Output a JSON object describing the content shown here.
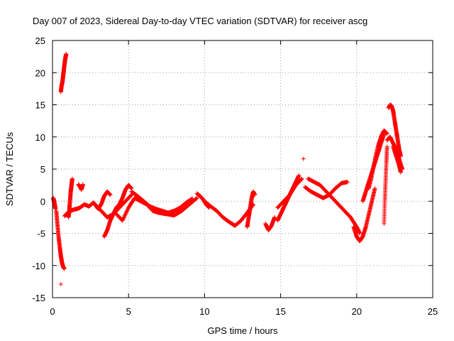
{
  "chart_data": {
    "type": "scatter",
    "title": "Day 007 of 2023, Sidereal Day-to-day VTEC variation (SDTVAR) for receiver ascg",
    "xlabel": "GPS time / hours",
    "ylabel": "SDTVAR / TECUs",
    "xlim": [
      0,
      25
    ],
    "ylim": [
      -15,
      25
    ],
    "xticks": [
      0,
      5,
      10,
      15,
      20,
      25
    ],
    "yticks": [
      -15,
      -10,
      -5,
      0,
      5,
      10,
      15,
      20,
      25
    ],
    "grid": true,
    "marker": "+",
    "series": [
      {
        "name": "SDTVAR",
        "color": "#ff0000",
        "segments": [
          {
            "x": [
              0.05,
              0.1,
              0.15,
              0.2
            ],
            "y": [
              0.5,
              0.0,
              -0.6,
              -1.2
            ]
          },
          {
            "x": [
              0.25,
              0.32,
              0.4,
              0.48,
              0.55,
              0.62,
              0.7,
              0.78
            ],
            "y": [
              -1.5,
              -3.5,
              -5.5,
              -7.2,
              -8.5,
              -9.5,
              -10.2,
              -10.5
            ]
          },
          {
            "x": [
              0.55
            ],
            "y": [
              -12.9
            ]
          },
          {
            "x": [
              0.55,
              0.6,
              0.65,
              0.7,
              0.75,
              0.8,
              0.85,
              0.9
            ],
            "y": [
              17.0,
              18.0,
              18.5,
              19.5,
              20.5,
              21.5,
              22.3,
              22.9
            ]
          },
          {
            "x": [
              0.8,
              1.0,
              1.2,
              1.4,
              1.6,
              1.8
            ],
            "y": [
              -2.3,
              -1.8,
              -1.5,
              -1.3,
              -1.2,
              -1.0
            ]
          },
          {
            "x": [
              1.05,
              1.1,
              1.15,
              1.2,
              1.25,
              1.3
            ],
            "y": [
              -2.5,
              -1.5,
              0.0,
              1.5,
              2.5,
              3.5
            ]
          },
          {
            "x": [
              1.7,
              1.8,
              1.9,
              2.0
            ],
            "y": [
              2.6,
              2.3,
              1.8,
              2.6
            ]
          },
          {
            "x": [
              1.8,
              2.1,
              2.4,
              2.7,
              3.0,
              3.2,
              3.4,
              3.6,
              3.8
            ],
            "y": [
              -1.0,
              -0.5,
              -0.8,
              -0.2,
              -1.2,
              -0.5,
              0.8,
              1.5,
              1.0
            ]
          },
          {
            "x": [
              3.4,
              3.6,
              3.8,
              4.0,
              4.2,
              4.4,
              4.6,
              4.8,
              5.0,
              5.2
            ],
            "y": [
              -5.5,
              -4.5,
              -3.0,
              -2.0,
              -1.0,
              -0.5,
              0.5,
              1.8,
              2.5,
              2.0
            ]
          },
          {
            "x": [
              2.8,
              3.2,
              3.6,
              4.0,
              4.4,
              4.8,
              5.2
            ],
            "y": [
              -0.5,
              -1.5,
              -2.5,
              -2.0,
              -1.0,
              0.0,
              1.0
            ]
          },
          {
            "x": [
              4.2,
              4.6,
              5.0,
              5.4,
              5.8,
              6.2,
              6.6,
              7.0,
              7.5,
              8.0,
              8.5,
              9.0,
              9.5
            ],
            "y": [
              -2.0,
              -3.0,
              -1.0,
              0.5,
              0.0,
              -0.5,
              -1.5,
              -1.8,
              -2.0,
              -2.2,
              -1.5,
              -0.5,
              0.5
            ]
          },
          {
            "x": [
              5.2,
              5.6,
              6.0,
              6.4,
              6.8,
              7.2,
              7.6,
              8.0,
              8.4,
              8.8,
              9.2
            ],
            "y": [
              1.5,
              0.8,
              0.0,
              -0.8,
              -1.2,
              -1.5,
              -1.8,
              -1.5,
              -1.0,
              -0.2,
              0.4
            ]
          },
          {
            "x": [
              9.5,
              9.7,
              9.9,
              10.1,
              10.3
            ],
            "y": [
              1.2,
              0.8,
              0.3,
              -0.5,
              -1.0
            ]
          },
          {
            "x": [
              10.0,
              10.4,
              10.8,
              11.2,
              11.6,
              12.0,
              12.4,
              12.8,
              13.2
            ],
            "y": [
              0.0,
              -0.8,
              -1.5,
              -2.5,
              -3.2,
              -3.8,
              -3.0,
              -1.8,
              -0.5
            ]
          },
          {
            "x": [
              12.8,
              12.9,
              13.0,
              13.1,
              13.2,
              13.3
            ],
            "y": [
              -4.0,
              -2.5,
              -1.0,
              0.5,
              1.5,
              1.0
            ]
          },
          {
            "x": [
              14.0,
              14.2,
              14.4,
              14.6
            ],
            "y": [
              -3.5,
              -4.5,
              -3.8,
              -2.5
            ]
          },
          {
            "x": [
              14.8,
              15.0,
              15.2,
              15.4,
              15.6,
              15.8,
              16.0,
              16.2
            ],
            "y": [
              -3.0,
              -2.0,
              -1.0,
              0.0,
              1.0,
              2.0,
              3.0,
              4.0
            ]
          },
          {
            "x": [
              14.8,
              15.2,
              15.6,
              16.0,
              16.4
            ],
            "y": [
              -1.0,
              0.0,
              1.0,
              2.5,
              3.5
            ]
          },
          {
            "x": [
              16.5
            ],
            "y": [
              6.6
            ]
          },
          {
            "x": [
              16.6,
              17.0,
              17.4,
              17.8,
              18.2,
              18.6,
              19.0,
              19.4
            ],
            "y": [
              2.2,
              1.5,
              1.0,
              0.5,
              1.0,
              2.0,
              2.8,
              3.0
            ]
          },
          {
            "x": [
              16.8,
              17.2,
              17.6,
              18.0,
              18.4,
              18.8,
              19.2,
              19.6,
              20.0,
              20.2
            ],
            "y": [
              3.5,
              3.0,
              2.5,
              1.5,
              0.5,
              -0.5,
              -1.5,
              -2.5,
              -4.0,
              -5.0
            ]
          },
          {
            "x": [
              19.8,
              20.0,
              20.2,
              20.4,
              20.6,
              20.8,
              21.0,
              21.2
            ],
            "y": [
              -4.0,
              -5.5,
              -6.2,
              -5.5,
              -4.0,
              -2.0,
              0.0,
              2.0
            ]
          },
          {
            "x": [
              20.4,
              20.6,
              20.8,
              21.0,
              21.2,
              21.4,
              21.6,
              21.8
            ],
            "y": [
              0.0,
              1.5,
              3.0,
              4.5,
              6.0,
              7.5,
              9.0,
              10.5
            ]
          },
          {
            "x": [
              20.8,
              21.0,
              21.2,
              21.4,
              21.6,
              21.8,
              22.0
            ],
            "y": [
              2.0,
              4.0,
              6.5,
              8.5,
              10.0,
              11.0,
              10.5
            ]
          },
          {
            "x": [
              21.8,
              21.85,
              21.9,
              21.95,
              22.0
            ],
            "y": [
              -3.5,
              0.0,
              3.0,
              6.0,
              8.5
            ]
          },
          {
            "x": [
              22.1,
              22.2,
              22.3,
              22.4,
              22.5,
              22.6,
              22.7,
              22.8,
              22.9
            ],
            "y": [
              14.5,
              15.0,
              14.8,
              14.0,
              12.5,
              11.0,
              9.5,
              8.0,
              7.0
            ]
          },
          {
            "x": [
              22.0,
              22.2,
              22.4,
              22.6,
              22.8,
              23.0
            ],
            "y": [
              9.5,
              10.0,
              9.0,
              8.0,
              6.5,
              5.0
            ]
          },
          {
            "x": [
              22.4,
              22.6,
              22.8,
              22.9
            ],
            "y": [
              8.5,
              7.0,
              5.5,
              4.5
            ]
          }
        ]
      }
    ]
  }
}
